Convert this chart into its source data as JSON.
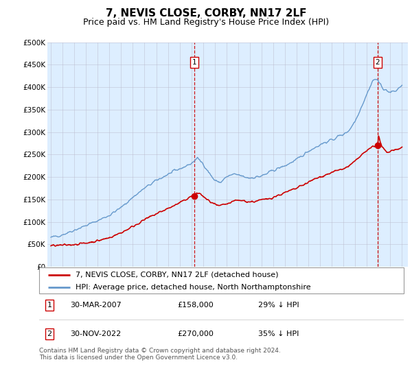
{
  "title": "7, NEVIS CLOSE, CORBY, NN17 2LF",
  "subtitle": "Price paid vs. HM Land Registry's House Price Index (HPI)",
  "legend_line1": "7, NEVIS CLOSE, CORBY, NN17 2LF (detached house)",
  "legend_line2": "HPI: Average price, detached house, North Northamptonshire",
  "footer": "Contains HM Land Registry data © Crown copyright and database right 2024.\nThis data is licensed under the Open Government Licence v3.0.",
  "annotation1": {
    "num": "1",
    "date": "30-MAR-2007",
    "price": "£158,000",
    "pct": "29% ↓ HPI"
  },
  "annotation2": {
    "num": "2",
    "date": "30-NOV-2022",
    "price": "£270,000",
    "pct": "35% ↓ HPI"
  },
  "point1_x": 2007.25,
  "point1_y": 158000,
  "point2_x": 2022.92,
  "point2_y": 270000,
  "red_color": "#cc0000",
  "blue_color": "#6699cc",
  "bg_color": "#ddeeff",
  "ylim": [
    0,
    500000
  ],
  "xlim_start": 1994.7,
  "xlim_end": 2025.5
}
